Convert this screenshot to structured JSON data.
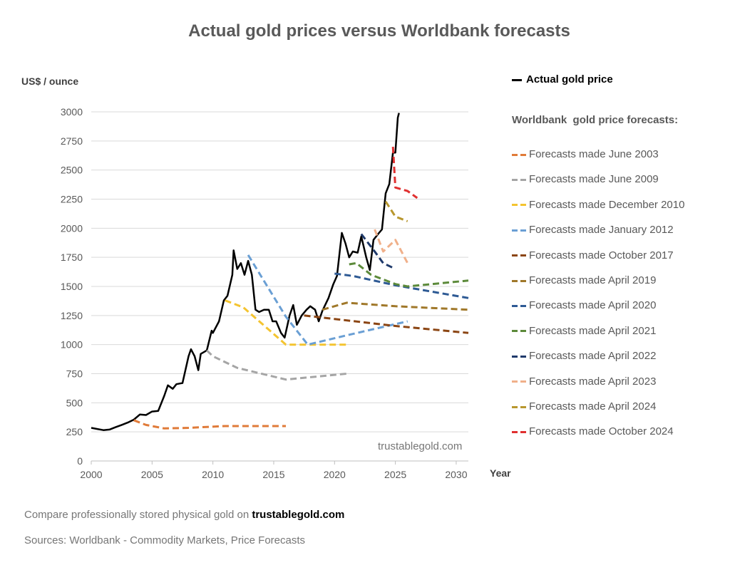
{
  "title": "Actual gold prices versus Worldbank forecasts",
  "chart_data": {
    "type": "line",
    "title": "Actual gold prices versus Worldbank forecasts",
    "ylabel": "US$ / ounce",
    "xlabel": "Year",
    "xlim": [
      2000,
      2031
    ],
    "ylim": [
      0,
      3000
    ],
    "x_ticks": [
      2000,
      2005,
      2010,
      2015,
      2020,
      2025,
      2030
    ],
    "y_ticks": [
      0,
      250,
      500,
      750,
      1000,
      1250,
      1500,
      1750,
      2000,
      2250,
      2500,
      2750,
      3000
    ],
    "grid": "horizontal",
    "legend_position": "right",
    "series": [
      {
        "name": "Actual gold price",
        "color": "#000000",
        "style": "solid",
        "points": [
          [
            2000,
            285
          ],
          [
            2000.5,
            275
          ],
          [
            2001,
            265
          ],
          [
            2001.5,
            270
          ],
          [
            2002,
            290
          ],
          [
            2002.5,
            310
          ],
          [
            2003,
            330
          ],
          [
            2003.5,
            355
          ],
          [
            2004,
            400
          ],
          [
            2004.5,
            395
          ],
          [
            2005,
            425
          ],
          [
            2005.5,
            430
          ],
          [
            2006,
            560
          ],
          [
            2006.3,
            650
          ],
          [
            2006.7,
            620
          ],
          [
            2007,
            660
          ],
          [
            2007.5,
            670
          ],
          [
            2008,
            900
          ],
          [
            2008.2,
            960
          ],
          [
            2008.5,
            900
          ],
          [
            2008.8,
            780
          ],
          [
            2009,
            920
          ],
          [
            2009.5,
            950
          ],
          [
            2009.9,
            1120
          ],
          [
            2010,
            1100
          ],
          [
            2010.5,
            1200
          ],
          [
            2010.9,
            1380
          ],
          [
            2011.2,
            1420
          ],
          [
            2011.6,
            1600
          ],
          [
            2011.7,
            1810
          ],
          [
            2012,
            1650
          ],
          [
            2012.3,
            1700
          ],
          [
            2012.6,
            1600
          ],
          [
            2012.9,
            1720
          ],
          [
            2013.2,
            1600
          ],
          [
            2013.5,
            1300
          ],
          [
            2013.8,
            1280
          ],
          [
            2014.2,
            1300
          ],
          [
            2014.6,
            1300
          ],
          [
            2014.9,
            1200
          ],
          [
            2015.2,
            1200
          ],
          [
            2015.6,
            1100
          ],
          [
            2015.9,
            1060
          ],
          [
            2016.3,
            1250
          ],
          [
            2016.6,
            1340
          ],
          [
            2016.9,
            1170
          ],
          [
            2017.3,
            1250
          ],
          [
            2017.7,
            1300
          ],
          [
            2018,
            1330
          ],
          [
            2018.4,
            1300
          ],
          [
            2018.7,
            1200
          ],
          [
            2019,
            1290
          ],
          [
            2019.5,
            1400
          ],
          [
            2019.9,
            1520
          ],
          [
            2020.2,
            1590
          ],
          [
            2020.6,
            1960
          ],
          [
            2020.9,
            1870
          ],
          [
            2021.2,
            1750
          ],
          [
            2021.5,
            1800
          ],
          [
            2021.9,
            1790
          ],
          [
            2022.2,
            1930
          ],
          [
            2022.6,
            1750
          ],
          [
            2022.9,
            1640
          ],
          [
            2023.2,
            1900
          ],
          [
            2023.5,
            1940
          ],
          [
            2023.9,
            1990
          ],
          [
            2024.2,
            2300
          ],
          [
            2024.5,
            2380
          ],
          [
            2024.8,
            2650
          ],
          [
            2025,
            2650
          ],
          [
            2025.2,
            2950
          ],
          [
            2025.3,
            2990
          ]
        ]
      },
      {
        "name": "Forecasts made June 2003",
        "color": "#E07B39",
        "style": "dashed",
        "points": [
          [
            2003.5,
            350
          ],
          [
            2004.5,
            310
          ],
          [
            2006,
            280
          ],
          [
            2008,
            285
          ],
          [
            2011,
            300
          ],
          [
            2016,
            300
          ]
        ]
      },
      {
        "name": "Forecasts made June 2009",
        "color": "#A5A5A5",
        "style": "dashed",
        "points": [
          [
            2009.5,
            950
          ],
          [
            2010,
            900
          ],
          [
            2012,
            800
          ],
          [
            2016,
            700
          ],
          [
            2021,
            750
          ]
        ]
      },
      {
        "name": "Forecasts made December 2010",
        "color": "#F4C430",
        "style": "dashed",
        "points": [
          [
            2011,
            1380
          ],
          [
            2012.5,
            1320
          ],
          [
            2016,
            1000
          ],
          [
            2021,
            1000
          ]
        ]
      },
      {
        "name": "Forecasts made January 2012",
        "color": "#6A9FD4",
        "style": "dashed",
        "points": [
          [
            2012.9,
            1770
          ],
          [
            2016,
            1240
          ],
          [
            2017.8,
            1000
          ],
          [
            2021,
            1080
          ],
          [
            2026,
            1200
          ]
        ]
      },
      {
        "name": "Forecasts made October 2017",
        "color": "#8B4513",
        "style": "dashed",
        "points": [
          [
            2017.5,
            1250
          ],
          [
            2020,
            1220
          ],
          [
            2025,
            1160
          ],
          [
            2031,
            1100
          ]
        ]
      },
      {
        "name": "Forecasts made April 2019",
        "color": "#A0782A",
        "style": "dashed",
        "points": [
          [
            2019,
            1300
          ],
          [
            2021,
            1360
          ],
          [
            2025,
            1330
          ],
          [
            2031,
            1300
          ]
        ]
      },
      {
        "name": "Forecasts made April 2020",
        "color": "#2E5A94",
        "style": "dashed",
        "points": [
          [
            2020,
            1610
          ],
          [
            2021.5,
            1590
          ],
          [
            2025,
            1510
          ],
          [
            2031,
            1400
          ]
        ]
      },
      {
        "name": "Forecasts made April 2021",
        "color": "#5C8A3A",
        "style": "dashed",
        "points": [
          [
            2021.2,
            1690
          ],
          [
            2021.8,
            1700
          ],
          [
            2023,
            1600
          ],
          [
            2025,
            1520
          ],
          [
            2026,
            1500
          ],
          [
            2031,
            1550
          ]
        ]
      },
      {
        "name": "Forecasts made April 2022",
        "color": "#1F3A6B",
        "style": "dashed",
        "points": [
          [
            2022.2,
            1950
          ],
          [
            2023.3,
            1800
          ],
          [
            2024,
            1700
          ],
          [
            2025,
            1650
          ]
        ]
      },
      {
        "name": "Forecasts made April 2023",
        "color": "#F0B08A",
        "style": "dashed",
        "points": [
          [
            2023.3,
            1990
          ],
          [
            2024,
            1800
          ],
          [
            2025,
            1900
          ],
          [
            2026,
            1700
          ]
        ]
      },
      {
        "name": "Forecasts made April 2024",
        "color": "#B8972E",
        "style": "dashed",
        "points": [
          [
            2024.2,
            2230
          ],
          [
            2025,
            2100
          ],
          [
            2026,
            2060
          ]
        ]
      },
      {
        "name": "Forecasts made October 2024",
        "color": "#E03030",
        "style": "dashed",
        "points": [
          [
            2024.8,
            2700
          ],
          [
            2025,
            2350
          ],
          [
            2026,
            2320
          ],
          [
            2026.8,
            2260
          ]
        ]
      }
    ]
  },
  "legend": {
    "actual_label": "Actual gold price",
    "heading": "Worldbank  gold price forecasts:"
  },
  "watermark": "trustablegold.com",
  "footer": {
    "compare_text": "Compare professionally stored physical gold on ",
    "compare_link": "trustablegold.com",
    "sources": "Sources: Worldbank - Commodity Markets, Price Forecasts"
  }
}
